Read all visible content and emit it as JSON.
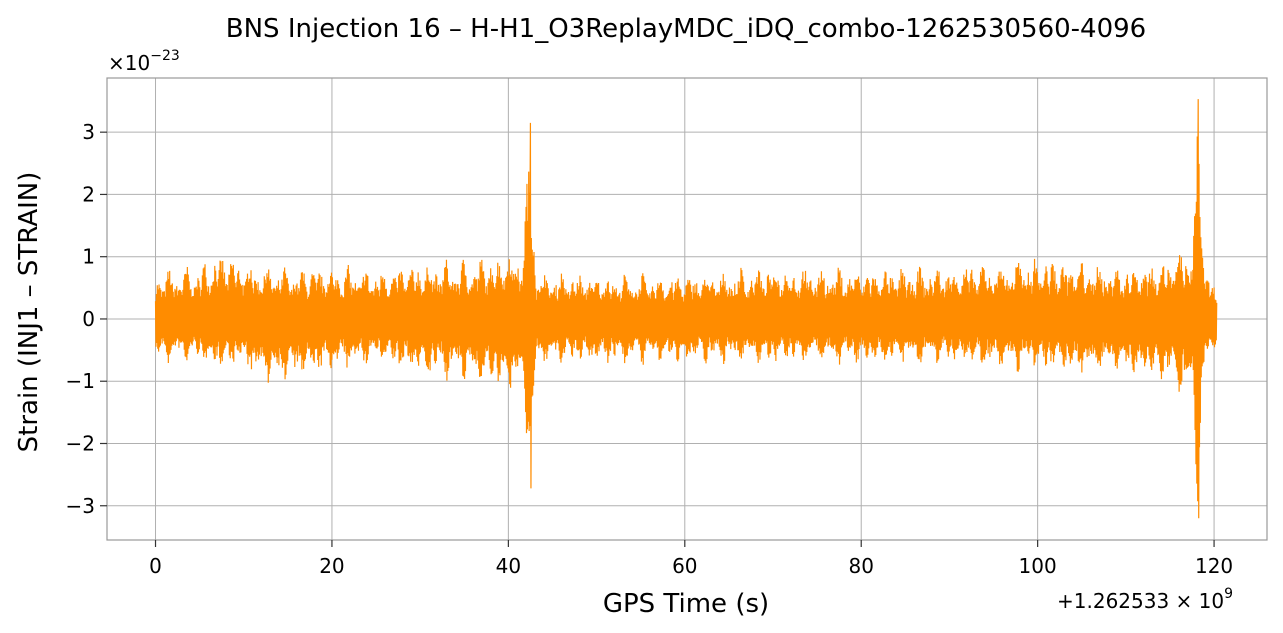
{
  "chart_data": {
    "type": "line",
    "title": "BNS Injection 16 – H-H1_O3ReplayMDC_iDQ_combo-1262530560-4096",
    "xlabel": "GPS Time (s)",
    "ylabel": "Strain (INJ1 – STRAIN)",
    "x_offset_label": "+1.262533 × 10^9",
    "x_offset_base": "+1.262533 × 10",
    "x_offset_exp": "9",
    "y_scale_label": "×10^−23",
    "y_scale_base": "×10",
    "y_scale_exp": "−23",
    "xlim": [
      -5.5,
      126
    ],
    "ylim": [
      -3.55,
      3.87
    ],
    "x_ticks": [
      0,
      20,
      40,
      60,
      80,
      100,
      120
    ],
    "x_tick_labels": [
      "0",
      "20",
      "40",
      "60",
      "80",
      "100",
      "120"
    ],
    "y_ticks": [
      -3,
      -2,
      -1,
      0,
      1,
      2,
      3
    ],
    "y_tick_labels": [
      "−3",
      "−2",
      "−1",
      "0",
      "1",
      "2",
      "3"
    ],
    "grid": true,
    "line_color": "#ff8c00",
    "series": [
      {
        "x_range": [
          0,
          120.3
        ],
        "envelope_points": [
          [
            0,
            0.8,
            -0.75
          ],
          [
            5,
            0.9,
            -0.75
          ],
          [
            7,
            1.15,
            -0.85
          ],
          [
            10,
            1.0,
            -0.8
          ],
          [
            12,
            0.95,
            -1.1
          ],
          [
            15,
            0.85,
            -1.05
          ],
          [
            20,
            0.9,
            -0.9
          ],
          [
            25,
            0.85,
            -0.75
          ],
          [
            30,
            0.95,
            -0.95
          ],
          [
            35,
            1.0,
            -1.05
          ],
          [
            38,
            1.05,
            -1.1
          ],
          [
            40,
            1.2,
            -1.3
          ],
          [
            41.5,
            1.1,
            -1.15
          ],
          [
            42.5,
            3.15,
            -2.72
          ],
          [
            43.2,
            0.8,
            -0.8
          ],
          [
            50,
            0.75,
            -0.75
          ],
          [
            60,
            0.75,
            -0.75
          ],
          [
            70,
            0.9,
            -0.75
          ],
          [
            80,
            0.85,
            -0.75
          ],
          [
            90,
            0.9,
            -0.75
          ],
          [
            100,
            1.05,
            -0.9
          ],
          [
            110,
            0.9,
            -0.95
          ],
          [
            115,
            1.05,
            -1.05
          ],
          [
            117.5,
            1.3,
            -1.4
          ],
          [
            118.2,
            3.53,
            -3.2
          ],
          [
            119,
            1.0,
            -0.8
          ],
          [
            120.3,
            0.4,
            -0.4
          ]
        ]
      }
    ],
    "peaks": [
      {
        "x": 42.5,
        "y_max": 3.15,
        "y_min": -2.72
      },
      {
        "x": 118.2,
        "y_max": 3.53,
        "y_min": -3.2
      }
    ]
  }
}
